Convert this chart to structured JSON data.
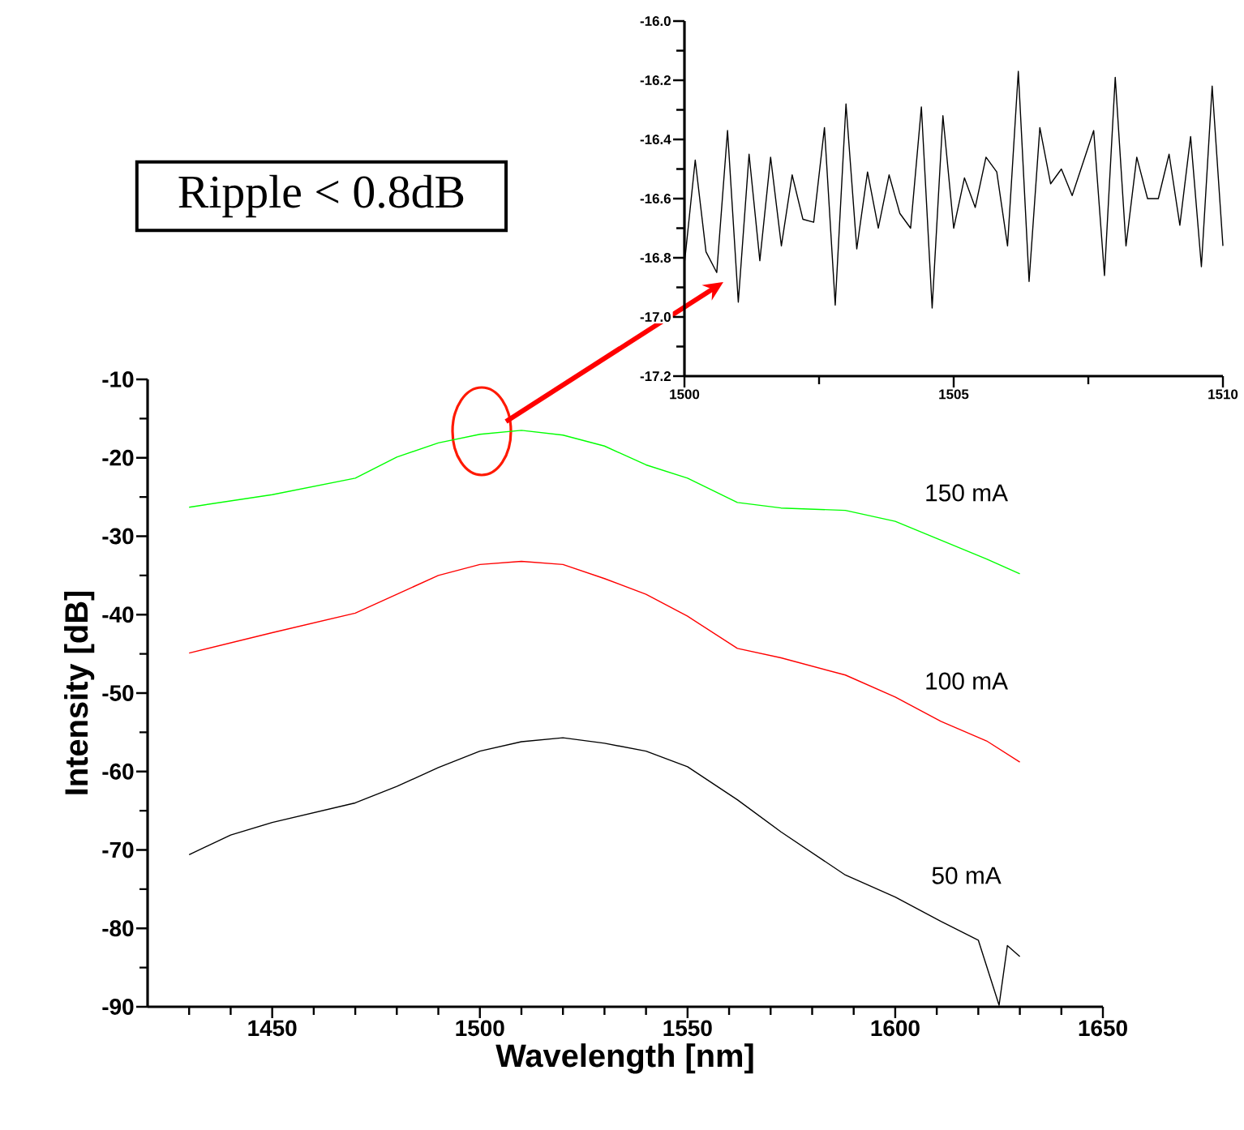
{
  "chart_data": [
    {
      "type": "line",
      "xlabel": "Wavelength [nm]",
      "ylabel": "Intensity [dB]",
      "annotations": [
        "Ripple < 0.8dB"
      ],
      "xlim": [
        1420,
        1650
      ],
      "ylim": [
        -90,
        -10
      ],
      "xticks": [
        {
          "value": 1430,
          "label": null
        },
        {
          "value": 1440,
          "label": null
        },
        1450,
        {
          "value": 1460,
          "label": null
        },
        {
          "value": 1470,
          "label": null
        },
        {
          "value": 1480,
          "label": null
        },
        {
          "value": 1490,
          "label": null
        },
        1500,
        {
          "value": 1510,
          "label": null
        },
        {
          "value": 1520,
          "label": null
        },
        {
          "value": 1530,
          "label": null
        },
        {
          "value": 1540,
          "label": null
        },
        1550,
        {
          "value": 1560,
          "label": null
        },
        {
          "value": 1570,
          "label": null
        },
        {
          "value": 1580,
          "label": null
        },
        {
          "value": 1590,
          "label": null
        },
        1600,
        {
          "value": 1610,
          "label": null
        },
        {
          "value": 1620,
          "label": null
        },
        {
          "value": 1630,
          "label": null
        },
        {
          "value": 1640,
          "label": null
        },
        1650
      ],
      "yticks": [
        -90,
        {
          "value": -85,
          "label": null
        },
        -80,
        {
          "value": -75,
          "label": null
        },
        -70,
        {
          "value": -65,
          "label": null
        },
        -60,
        {
          "value": -55,
          "label": null
        },
        -50,
        {
          "value": -45,
          "label": null
        },
        -40,
        {
          "value": -35,
          "label": null
        },
        -30,
        {
          "value": -25,
          "label": null
        },
        -20,
        {
          "value": -15,
          "label": null
        },
        -10
      ],
      "grid": false,
      "marker": "none",
      "line_style": "solid",
      "series": [
        {
          "name": "150 mA",
          "color": "#00ff00",
          "x": [
            1430,
            1450,
            1470,
            1480,
            1490,
            1500,
            1510,
            1520,
            1530,
            1540,
            1550,
            1562,
            1572.5,
            1588,
            1600,
            1611,
            1622,
            1630
          ],
          "values": [
            -26.3,
            -24.7,
            -22.6,
            -19.9,
            -18.1,
            -17.0,
            -16.5,
            -17.1,
            -18.5,
            -20.9,
            -22.6,
            -25.7,
            -26.4,
            -26.7,
            -28.1,
            -30.5,
            -32.9,
            -34.8
          ]
        },
        {
          "name": "100 mA",
          "color": "#ff0000",
          "x": [
            1430,
            1450,
            1470,
            1480,
            1490,
            1500,
            1510,
            1520,
            1530,
            1540,
            1550,
            1562,
            1572.5,
            1588,
            1600,
            1611,
            1622,
            1630
          ],
          "values": [
            -44.9,
            -42.3,
            -39.8,
            -37.4,
            -35.0,
            -33.6,
            -33.2,
            -33.6,
            -35.4,
            -37.4,
            -40.2,
            -44.3,
            -45.5,
            -47.7,
            -50.5,
            -53.6,
            -56.1,
            -58.8
          ]
        },
        {
          "name": "50 mA",
          "color": "#000000",
          "x": [
            1430,
            1440,
            1450,
            1470,
            1480,
            1490,
            1500,
            1510,
            1520,
            1530,
            1540,
            1550,
            1562,
            1572.5,
            1588,
            1600,
            1611,
            1620,
            1625,
            1627,
            1630
          ],
          "values": [
            -70.6,
            -68.1,
            -66.5,
            -64.0,
            -61.9,
            -59.5,
            -57.4,
            -56.2,
            -55.7,
            -56.4,
            -57.4,
            -59.4,
            -63.6,
            -67.7,
            -73.2,
            -76.0,
            -79.1,
            -81.5,
            -89.8,
            -82.2,
            -83.6
          ]
        }
      ]
    },
    {
      "type": "line",
      "xlim": [
        1500,
        1510
      ],
      "ylim": [
        -17.2,
        -16.0
      ],
      "xticks": [
        1500,
        {
          "value": 1502.5,
          "label": null
        },
        1505,
        {
          "value": 1507.5,
          "label": null
        },
        1510
      ],
      "yticks": [
        {
          "value": -17.2,
          "label": "-17.2"
        },
        {
          "value": -17.1,
          "label": null
        },
        {
          "value": -17.0,
          "label": "-17.0"
        },
        {
          "value": -16.9,
          "label": null
        },
        {
          "value": -16.8,
          "label": "-16.8"
        },
        {
          "value": -16.7,
          "label": null
        },
        {
          "value": -16.6,
          "label": "-16.6"
        },
        {
          "value": -16.5,
          "label": null
        },
        {
          "value": -16.4,
          "label": "-16.4"
        },
        {
          "value": -16.3,
          "label": null
        },
        {
          "value": -16.2,
          "label": "-16.2"
        },
        {
          "value": -16.1,
          "label": null
        },
        {
          "value": -16.0,
          "label": "-16.0"
        }
      ],
      "grid": false,
      "marker": "none",
      "line_style": "solid",
      "series": [
        {
          "color": "#000000",
          "x": [
            1500,
            1500.2,
            1500.4,
            1500.6,
            1500.8,
            1501,
            1501.2,
            1501.4,
            1501.6,
            1501.8,
            1502,
            1502.2,
            1502.4,
            1502.6,
            1502.8,
            1503,
            1503.2,
            1503.4,
            1503.6,
            1503.8,
            1504,
            1504.2,
            1504.4,
            1504.6,
            1504.8,
            1505,
            1505.2,
            1505.4,
            1505.6,
            1505.8,
            1506,
            1506.2,
            1506.4,
            1506.6,
            1506.8,
            1507,
            1507.2,
            1507.4,
            1507.6,
            1507.8,
            1508,
            1508.2,
            1508.4,
            1508.6,
            1508.8,
            1509,
            1509.2,
            1509.4,
            1509.6,
            1509.8,
            1510
          ],
          "values": [
            -16.82,
            -16.47,
            -16.78,
            -16.85,
            -16.37,
            -16.95,
            -16.45,
            -16.81,
            -16.46,
            -16.76,
            -16.52,
            -16.67,
            -16.68,
            -16.36,
            -16.96,
            -16.28,
            -16.77,
            -16.51,
            -16.7,
            -16.52,
            -16.65,
            -16.7,
            -16.29,
            -16.97,
            -16.32,
            -16.7,
            -16.53,
            -16.63,
            -16.46,
            -16.51,
            -16.76,
            -16.17,
            -16.88,
            -16.36,
            -16.55,
            -16.5,
            -16.59,
            -16.48,
            -16.37,
            -16.86,
            -16.19,
            -16.76,
            -16.46,
            -16.6,
            -16.6,
            -16.45,
            -16.69,
            -16.39,
            -16.83,
            -16.22,
            -16.76
          ]
        }
      ]
    }
  ]
}
